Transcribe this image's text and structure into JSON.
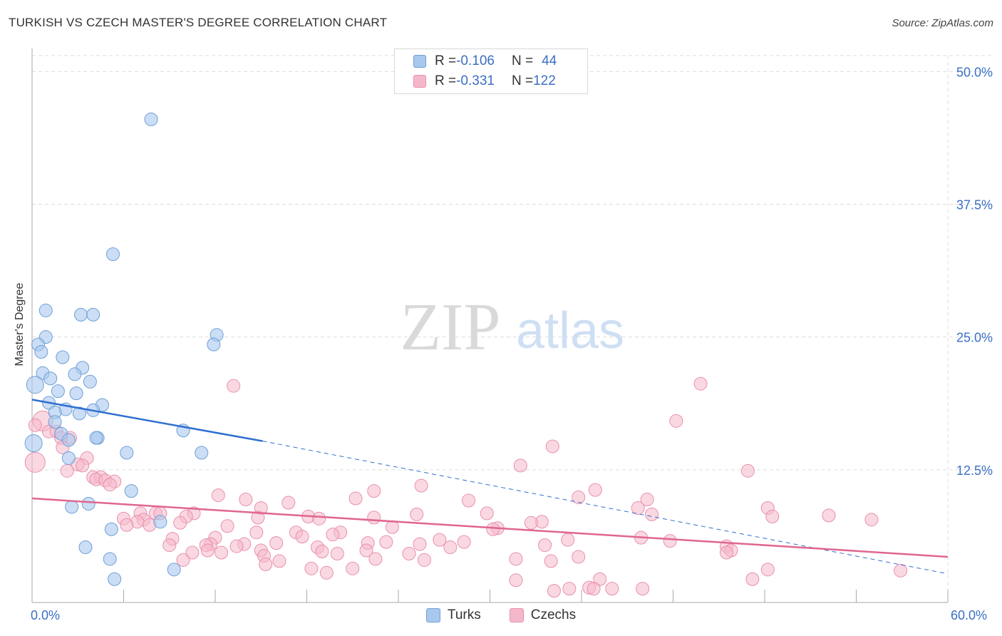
{
  "title": "TURKISH VS CZECH MASTER'S DEGREE CORRELATION CHART",
  "source": "Source: ZipAtlas.com",
  "watermark": {
    "zip": "ZIP",
    "atlas": "atlas"
  },
  "legend_top": [
    {
      "r_label": "R = ",
      "r_value": "-0.106",
      "n_label": "N = ",
      "n_value": "44"
    },
    {
      "r_label": "R = ",
      "r_value": "-0.331",
      "n_label": "N = ",
      "n_value": "122"
    }
  ],
  "legend_bottom": [
    "Turks",
    "Czechs"
  ],
  "x_tick_left": "0.0%",
  "x_tick_right": "60.0%",
  "colors": {
    "turks_fill": "#a9c8ee",
    "turks_stroke": "#6f9fd8",
    "turks_line": "#2f6fd0",
    "czechs_fill": "#f5b8cb",
    "czechs_stroke": "#e890ac",
    "czechs_line": "#e06690",
    "grid": "#dddddd",
    "tick_text": "#3b6fc4"
  },
  "chart_data": {
    "type": "scatter",
    "title": "TURKISH VS CZECH MASTER'S DEGREE CORRELATION CHART",
    "xlabel": "",
    "ylabel": "Master's Degree",
    "xlim": [
      0,
      60
    ],
    "ylim": [
      0,
      51.5
    ],
    "y_ticks": [
      12.5,
      25.0,
      37.5,
      50.0
    ],
    "y_tick_labels": [
      "12.5%",
      "25.0%",
      "37.5%",
      "50.0%"
    ],
    "grid": true,
    "series": [
      {
        "name": "Turks",
        "R": -0.106,
        "N": 44,
        "trend": {
          "x0": 0,
          "y0": 19.1,
          "x1": 15.1,
          "y1": 15.2,
          "dashed_to_x": 60,
          "dashed_y_end": 2.7
        },
        "points": [
          [
            7.8,
            45.5
          ],
          [
            5.3,
            32.8
          ],
          [
            0.9,
            27.5
          ],
          [
            3.2,
            27.1
          ],
          [
            4.0,
            27.1
          ],
          [
            0.9,
            25.0
          ],
          [
            12.1,
            25.2
          ],
          [
            11.9,
            24.3
          ],
          [
            0.4,
            24.3
          ],
          [
            0.6,
            23.6
          ],
          [
            2.0,
            23.1
          ],
          [
            3.3,
            22.1
          ],
          [
            0.7,
            21.6
          ],
          [
            2.8,
            21.5
          ],
          [
            1.2,
            21.1
          ],
          [
            3.8,
            20.8
          ],
          [
            0.2,
            20.5
          ],
          [
            1.7,
            19.9
          ],
          [
            2.9,
            19.7
          ],
          [
            1.1,
            18.8
          ],
          [
            4.6,
            18.6
          ],
          [
            2.2,
            18.2
          ],
          [
            4.0,
            18.1
          ],
          [
            1.5,
            17.9
          ],
          [
            3.1,
            17.8
          ],
          [
            1.5,
            17.0
          ],
          [
            9.9,
            16.2
          ],
          [
            1.9,
            15.9
          ],
          [
            4.3,
            15.5
          ],
          [
            4.2,
            15.5
          ],
          [
            2.4,
            15.3
          ],
          [
            0.1,
            15.0
          ],
          [
            6.2,
            14.1
          ],
          [
            11.1,
            14.1
          ],
          [
            2.4,
            13.6
          ],
          [
            6.5,
            10.5
          ],
          [
            3.7,
            9.3
          ],
          [
            2.6,
            9.0
          ],
          [
            8.4,
            7.6
          ],
          [
            5.2,
            6.9
          ],
          [
            3.5,
            5.2
          ],
          [
            5.1,
            4.1
          ],
          [
            9.3,
            3.1
          ],
          [
            5.4,
            2.2
          ]
        ]
      },
      {
        "name": "Czechs",
        "R": -0.331,
        "N": 122,
        "trend": {
          "x0": 0,
          "y0": 9.8,
          "x1": 60,
          "y1": 4.3
        },
        "points": [
          [
            13.2,
            20.4
          ],
          [
            43.8,
            20.6
          ],
          [
            42.2,
            17.1
          ],
          [
            0.7,
            17.1
          ],
          [
            0.2,
            16.7
          ],
          [
            1.1,
            16.1
          ],
          [
            1.6,
            16.1
          ],
          [
            2.5,
            15.5
          ],
          [
            1.9,
            15.5
          ],
          [
            34.1,
            14.7
          ],
          [
            2.0,
            14.6
          ],
          [
            3.6,
            13.6
          ],
          [
            0.2,
            13.2
          ],
          [
            3.0,
            13.0
          ],
          [
            3.3,
            12.9
          ],
          [
            32.0,
            12.9
          ],
          [
            2.3,
            12.4
          ],
          [
            46.9,
            12.4
          ],
          [
            4.0,
            11.8
          ],
          [
            4.5,
            11.8
          ],
          [
            4.2,
            11.6
          ],
          [
            4.8,
            11.5
          ],
          [
            5.4,
            11.4
          ],
          [
            5.1,
            11.1
          ],
          [
            25.5,
            11.0
          ],
          [
            22.4,
            10.5
          ],
          [
            36.9,
            10.6
          ],
          [
            12.2,
            10.1
          ],
          [
            21.2,
            9.8
          ],
          [
            35.8,
            9.9
          ],
          [
            14.0,
            9.7
          ],
          [
            28.6,
            9.6
          ],
          [
            40.3,
            9.7
          ],
          [
            16.8,
            9.4
          ],
          [
            15.0,
            8.9
          ],
          [
            39.7,
            8.9
          ],
          [
            48.2,
            8.9
          ],
          [
            7.1,
            8.4
          ],
          [
            8.1,
            8.4
          ],
          [
            8.4,
            8.4
          ],
          [
            29.8,
            8.4
          ],
          [
            10.6,
            8.4
          ],
          [
            25.2,
            8.3
          ],
          [
            40.6,
            8.3
          ],
          [
            52.2,
            8.2
          ],
          [
            10.1,
            8.1
          ],
          [
            18.1,
            8.1
          ],
          [
            48.5,
            8.1
          ],
          [
            14.8,
            8.0
          ],
          [
            22.4,
            8.0
          ],
          [
            55.0,
            7.8
          ],
          [
            6.0,
            7.9
          ],
          [
            7.3,
            7.8
          ],
          [
            18.8,
            7.9
          ],
          [
            6.9,
            7.6
          ],
          [
            33.4,
            7.6
          ],
          [
            32.7,
            7.5
          ],
          [
            9.7,
            7.5
          ],
          [
            6.2,
            7.3
          ],
          [
            7.7,
            7.3
          ],
          [
            12.8,
            7.2
          ],
          [
            23.6,
            7.1
          ],
          [
            30.5,
            7.0
          ],
          [
            30.2,
            6.9
          ],
          [
            14.7,
            6.6
          ],
          [
            20.2,
            6.6
          ],
          [
            17.3,
            6.6
          ],
          [
            19.7,
            6.4
          ],
          [
            12.0,
            6.1
          ],
          [
            17.7,
            6.2
          ],
          [
            9.2,
            6.0
          ],
          [
            26.7,
            5.9
          ],
          [
            39.9,
            6.1
          ],
          [
            41.8,
            5.8
          ],
          [
            35.1,
            5.9
          ],
          [
            23.2,
            5.7
          ],
          [
            16.0,
            5.6
          ],
          [
            28.3,
            5.7
          ],
          [
            22.0,
            5.6
          ],
          [
            13.9,
            5.5
          ],
          [
            11.7,
            5.5
          ],
          [
            9.0,
            5.4
          ],
          [
            25.4,
            5.5
          ],
          [
            27.4,
            5.2
          ],
          [
            33.6,
            5.4
          ],
          [
            11.4,
            5.4
          ],
          [
            13.4,
            5.3
          ],
          [
            18.7,
            5.2
          ],
          [
            45.5,
            5.3
          ],
          [
            15.0,
            4.9
          ],
          [
            10.5,
            4.7
          ],
          [
            11.5,
            4.9
          ],
          [
            21.9,
            4.9
          ],
          [
            19.0,
            4.8
          ],
          [
            20.0,
            4.6
          ],
          [
            24.7,
            4.6
          ],
          [
            15.2,
            4.4
          ],
          [
            12.4,
            4.7
          ],
          [
            35.8,
            4.3
          ],
          [
            22.5,
            4.1
          ],
          [
            45.8,
            4.9
          ],
          [
            45.5,
            4.7
          ],
          [
            25.7,
            4.0
          ],
          [
            31.7,
            4.1
          ],
          [
            34.0,
            3.9
          ],
          [
            16.2,
            3.9
          ],
          [
            9.9,
            4.0
          ],
          [
            15.3,
            3.6
          ],
          [
            18.3,
            3.2
          ],
          [
            21.0,
            3.2
          ],
          [
            48.2,
            3.1
          ],
          [
            56.9,
            3.0
          ],
          [
            19.3,
            2.8
          ],
          [
            47.2,
            2.2
          ],
          [
            31.7,
            2.1
          ],
          [
            37.2,
            2.2
          ],
          [
            36.5,
            1.4
          ],
          [
            36.8,
            1.3
          ],
          [
            38.0,
            1.3
          ],
          [
            35.2,
            1.3
          ],
          [
            40.0,
            1.3
          ],
          [
            34.2,
            1.1
          ]
        ]
      }
    ]
  }
}
